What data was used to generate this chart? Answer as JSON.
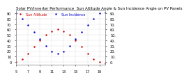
{
  "title": "Solar PV/Inverter Performance  Sun Altitude Angle & Sun Incidence Angle on PV Panels",
  "legend_labels": [
    "Sun Altitude",
    "Sun Incidence"
  ],
  "legend_colors": [
    "#cc0000",
    "#0000cc"
  ],
  "x_values": [
    5,
    6,
    7,
    8,
    9,
    10,
    11,
    12,
    13,
    14,
    15,
    16,
    17,
    18,
    19,
    20
  ],
  "altitude_y": [
    0,
    5,
    15,
    28,
    40,
    50,
    57,
    60,
    57,
    50,
    40,
    28,
    15,
    5,
    0,
    -2
  ],
  "incidence_y": [
    90,
    80,
    68,
    55,
    42,
    30,
    20,
    15,
    20,
    30,
    42,
    55,
    68,
    80,
    90,
    92
  ],
  "xlim": [
    5,
    20
  ],
  "ylim": [
    -5,
    95
  ],
  "yticks": [
    0,
    10,
    20,
    30,
    40,
    50,
    60,
    70,
    80,
    90
  ],
  "xticks": [
    5,
    7,
    9,
    11,
    13,
    15,
    17,
    19
  ],
  "background_color": "#ffffff",
  "plot_bg": "#ffffff",
  "grid_color": "#aaaaaa",
  "text_color": "#000000",
  "tick_color": "#000000",
  "title_fontsize": 4.0,
  "legend_fontsize": 3.5,
  "tick_fontsize": 3.5,
  "line_width": 0.6,
  "marker_size": 1.5
}
